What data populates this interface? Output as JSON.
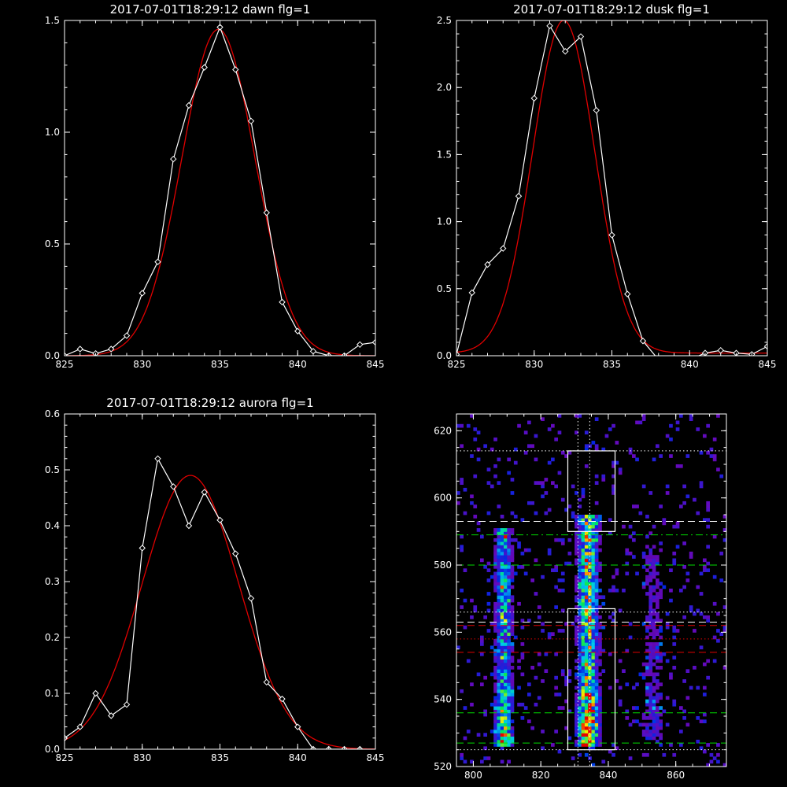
{
  "chart_data": [
    {
      "type": "line",
      "title": "2017-07-01T18:29:12 dawn flg=1",
      "xlim": [
        825,
        845
      ],
      "ylim": [
        0,
        1.5
      ],
      "xticks": [
        "825",
        "830",
        "835",
        "840",
        "845"
      ],
      "yticks": [
        "0.0",
        "0.5",
        "1.0",
        "1.5"
      ],
      "series": [
        {
          "kind": "data",
          "color": "#ffffff",
          "markers": "diamond",
          "x": [
            825,
            826,
            827,
            828,
            829,
            830,
            831,
            832,
            833,
            834,
            835,
            836,
            837,
            838,
            839,
            840,
            841,
            842,
            843,
            844,
            845
          ],
          "y": [
            0.0,
            0.03,
            0.01,
            0.03,
            0.09,
            0.28,
            0.42,
            0.88,
            1.12,
            1.29,
            1.47,
            1.28,
            1.05,
            0.64,
            0.24,
            0.11,
            0.02,
            0.0,
            0.0,
            0.05,
            0.06
          ]
        },
        {
          "kind": "fit",
          "color": "#e00000",
          "markers": "none",
          "model": "gaussian",
          "amplitude": 1.46,
          "center": 834.9,
          "sigma": 2.35,
          "offset": 0.0
        }
      ]
    },
    {
      "type": "line",
      "title": "2017-07-01T18:29:12 dusk flg=1",
      "xlim": [
        825,
        845
      ],
      "ylim": [
        0,
        2.5
      ],
      "xticks": [
        "825",
        "830",
        "835",
        "840",
        "845"
      ],
      "yticks": [
        "0.0",
        "0.5",
        "1.0",
        "1.5",
        "2.0",
        "2.5"
      ],
      "series": [
        {
          "kind": "data",
          "color": "#ffffff",
          "markers": "diamond",
          "x": [
            825,
            826,
            827,
            828,
            829,
            830,
            831,
            832,
            833,
            834,
            835,
            836,
            837,
            838,
            839,
            840,
            841,
            842,
            843,
            844,
            845
          ],
          "y": [
            0.01,
            0.47,
            0.68,
            0.8,
            1.19,
            1.92,
            2.46,
            2.27,
            2.38,
            1.83,
            0.9,
            0.46,
            0.11,
            -0.03,
            -0.05,
            -0.03,
            0.02,
            0.04,
            0.02,
            0.01,
            0.07
          ]
        },
        {
          "kind": "fit",
          "color": "#e00000",
          "markers": "none",
          "model": "gaussian",
          "amplitude": 2.48,
          "center": 831.9,
          "sigma": 2.0,
          "offset": 0.02
        }
      ]
    },
    {
      "type": "line",
      "title": "2017-07-01T18:29:12 aurora flg=1",
      "xlim": [
        825,
        845
      ],
      "ylim": [
        0,
        0.6
      ],
      "xticks": [
        "825",
        "830",
        "835",
        "840",
        "845"
      ],
      "yticks": [
        "0.0",
        "0.1",
        "0.2",
        "0.3",
        "0.4",
        "0.5",
        "0.6"
      ],
      "series": [
        {
          "kind": "data",
          "color": "#ffffff",
          "markers": "diamond",
          "x": [
            825,
            826,
            827,
            828,
            829,
            830,
            831,
            832,
            833,
            834,
            835,
            836,
            837,
            838,
            839,
            840,
            841,
            842,
            843,
            844,
            845
          ],
          "y": [
            0.02,
            0.04,
            0.1,
            0.06,
            0.08,
            0.36,
            0.52,
            0.47,
            0.4,
            0.46,
            0.41,
            0.35,
            0.27,
            0.12,
            0.09,
            0.04,
            0.0,
            0.0,
            0.0,
            0.0,
            -0.01
          ]
        },
        {
          "kind": "fit",
          "color": "#e00000",
          "markers": "none",
          "model": "gaussian",
          "amplitude": 0.49,
          "center": 833.1,
          "sigma": 3.1,
          "offset": 0.0
        }
      ]
    },
    {
      "type": "heatmap",
      "title": "",
      "xlim": [
        795,
        875
      ],
      "ylim": [
        520,
        625
      ],
      "xticks": [
        "800",
        "820",
        "840",
        "860"
      ],
      "yticks": [
        "520",
        "540",
        "560",
        "580",
        "600",
        "620"
      ],
      "colormap": "rainbow",
      "intensity_bands": [
        {
          "x_center": 809,
          "x_width": 2.5,
          "y_range": [
            526,
            590
          ],
          "peak": 0.75
        },
        {
          "x_center": 834,
          "x_width": 3.0,
          "y_range": [
            526,
            594
          ],
          "peak": 1.0
        },
        {
          "x_center": 853,
          "x_width": 3.5,
          "y_range": [
            528,
            585
          ],
          "peak": 0.3
        }
      ],
      "boxes": [
        {
          "x": [
            828,
            842
          ],
          "y": [
            525,
            567
          ],
          "color": "#ffffff"
        },
        {
          "x": [
            828,
            842
          ],
          "y": [
            590,
            614
          ],
          "color": "#ffffff"
        }
      ],
      "hlines": [
        {
          "y": 525,
          "color": "#ffffff",
          "style": "dotted"
        },
        {
          "y": 527,
          "color": "#00dd00",
          "style": "dashed"
        },
        {
          "y": 536,
          "color": "#00dd00",
          "style": "dashed"
        },
        {
          "y": 554,
          "color": "#e00000",
          "style": "dashed"
        },
        {
          "y": 558,
          "color": "#e00000",
          "style": "dotted"
        },
        {
          "y": 562,
          "color": "#e00000",
          "style": "dashed"
        },
        {
          "y": 563,
          "color": "#ffffff",
          "style": "dashed"
        },
        {
          "y": 566,
          "color": "#ffffff",
          "style": "dotted"
        },
        {
          "y": 580,
          "color": "#00dd00",
          "style": "dashed"
        },
        {
          "y": 589,
          "color": "#00dd00",
          "style": "dashdot"
        },
        {
          "y": 593,
          "color": "#ffffff",
          "style": "dashed"
        },
        {
          "y": 614,
          "color": "#ffffff",
          "style": "dotted"
        }
      ],
      "vlines": [
        {
          "x": 831,
          "color": "#ffffff",
          "style": "dotted"
        },
        {
          "x": 834.5,
          "color": "#ffffff",
          "style": "dotted"
        }
      ]
    }
  ]
}
